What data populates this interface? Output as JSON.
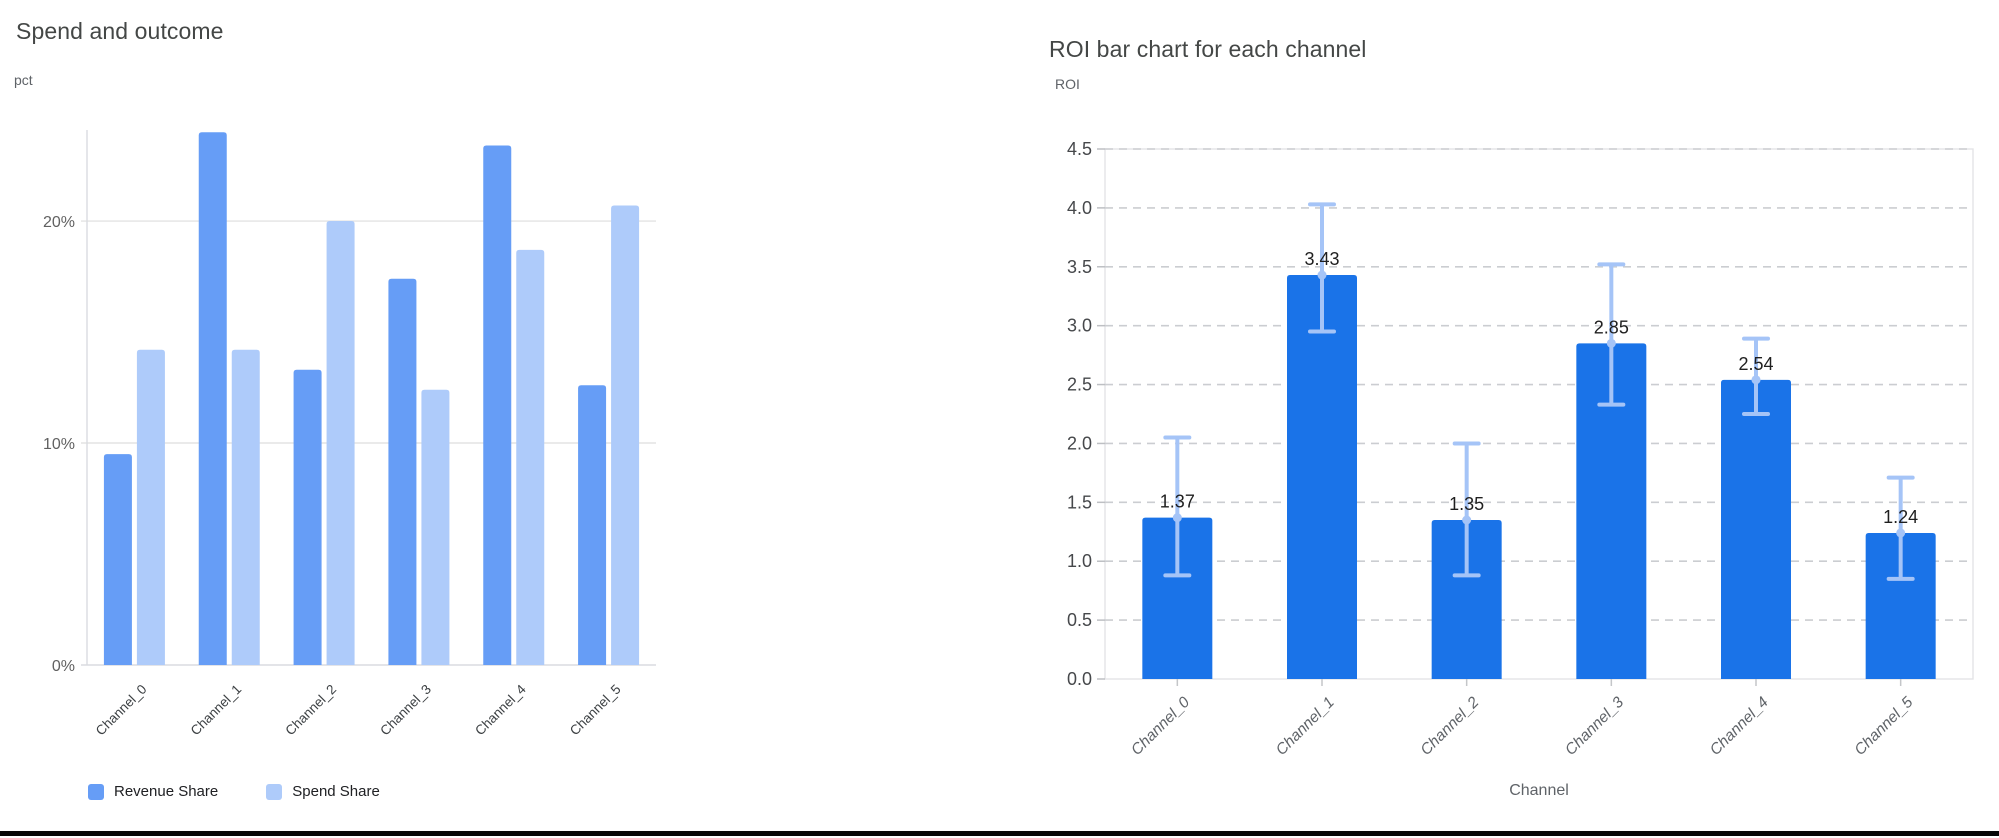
{
  "ui": {
    "bottom_border_color": "#070707",
    "background_color": "#ffffff"
  },
  "chart_data": [
    {
      "type": "bar",
      "title": "Spend and outcome",
      "ylabel": "pct",
      "xlabel": "",
      "categories": [
        "Channel_0",
        "Channel_1",
        "Channel_2",
        "Channel_3",
        "Channel_4",
        "Channel_5"
      ],
      "series": [
        {
          "name": "Revenue Share",
          "color": "#669DF6",
          "values": [
            9.5,
            24.0,
            13.3,
            17.4,
            23.4,
            12.6
          ]
        },
        {
          "name": "Spend Share",
          "color": "#AECBFA",
          "values": [
            14.2,
            14.2,
            20.0,
            12.4,
            18.7,
            20.7
          ]
        }
      ],
      "ylim": [
        0,
        24.1
      ],
      "yticks": [
        {
          "value": 0,
          "label": "0%"
        },
        {
          "value": 10,
          "label": "10%"
        },
        {
          "value": 20,
          "label": "20%"
        }
      ],
      "grid": "solid",
      "legend_position": "bottom"
    },
    {
      "type": "bar",
      "title": "ROI bar chart for each channel",
      "ylabel": "ROI",
      "xlabel": "Channel",
      "categories": [
        "Channel_0",
        "Channel_1",
        "Channel_2",
        "Channel_3",
        "Channel_4",
        "Channel_5"
      ],
      "values": [
        1.37,
        3.43,
        1.35,
        2.85,
        2.54,
        1.24
      ],
      "value_labels": [
        "1.37",
        "3.43",
        "1.35",
        "2.85",
        "2.54",
        "1.24"
      ],
      "error_low": [
        0.88,
        2.95,
        0.88,
        2.33,
        2.25,
        0.85
      ],
      "error_high": [
        2.05,
        4.03,
        2.0,
        3.52,
        2.89,
        1.71
      ],
      "bar_color": "#1A73E8",
      "error_color": "#A5C4F7",
      "ylim": [
        0,
        4.5
      ],
      "ytick_labels": [
        "0.0",
        "0.5",
        "1.0",
        "1.5",
        "2.0",
        "2.5",
        "3.0",
        "3.5",
        "4.0",
        "4.5"
      ],
      "grid": "dashed",
      "legend_position": "none"
    }
  ]
}
